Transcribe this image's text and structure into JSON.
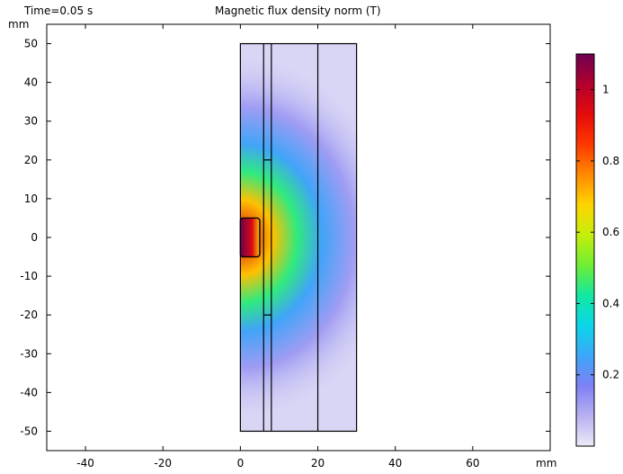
{
  "header": {
    "time_label": "Time=0.05 s",
    "plot_title": "Magnetic flux density norm (T)"
  },
  "chart_data": {
    "type": "heatmap",
    "title": "Magnetic flux density norm (T)",
    "time_label": "Time=0.05 s",
    "x_unit": "mm",
    "y_unit": "mm",
    "xlim": [
      -50,
      80
    ],
    "ylim": [
      -55,
      55
    ],
    "x_ticks": [
      -40,
      -20,
      0,
      20,
      40,
      60
    ],
    "y_ticks": [
      -50,
      -40,
      -30,
      -20,
      -10,
      0,
      10,
      20,
      30,
      40,
      50
    ],
    "geometry": {
      "outer_domain": {
        "r": [
          0,
          30
        ],
        "z": [
          -50,
          50
        ]
      },
      "vertical_lines_r": [
        6,
        8,
        20
      ],
      "segment_ticks_z": [
        20,
        -20
      ],
      "coil": {
        "r": [
          0,
          5
        ],
        "z": [
          -5,
          5
        ]
      }
    },
    "field": {
      "max_value": 1.1,
      "background_value": 0.03,
      "coil_value_range": [
        0.7,
        1.1
      ],
      "falloff_mm": 10
    },
    "colorbar": {
      "min": 0,
      "max": 1.1,
      "ticks": [
        0.2,
        0.4,
        0.6,
        0.8,
        1
      ],
      "tick_labels": [
        "0.2",
        "0.4",
        "0.6",
        "0.8",
        "1"
      ],
      "colormap": [
        "#ecebf6",
        "#b7b0f2",
        "#7f80f5",
        "#3da6f8",
        "#0bd6e9",
        "#12e8a0",
        "#6fee34",
        "#c5ee0b",
        "#ffd400",
        "#ff8a00",
        "#ff3800",
        "#e60b0b",
        "#b3002e",
        "#6e0050"
      ]
    }
  }
}
